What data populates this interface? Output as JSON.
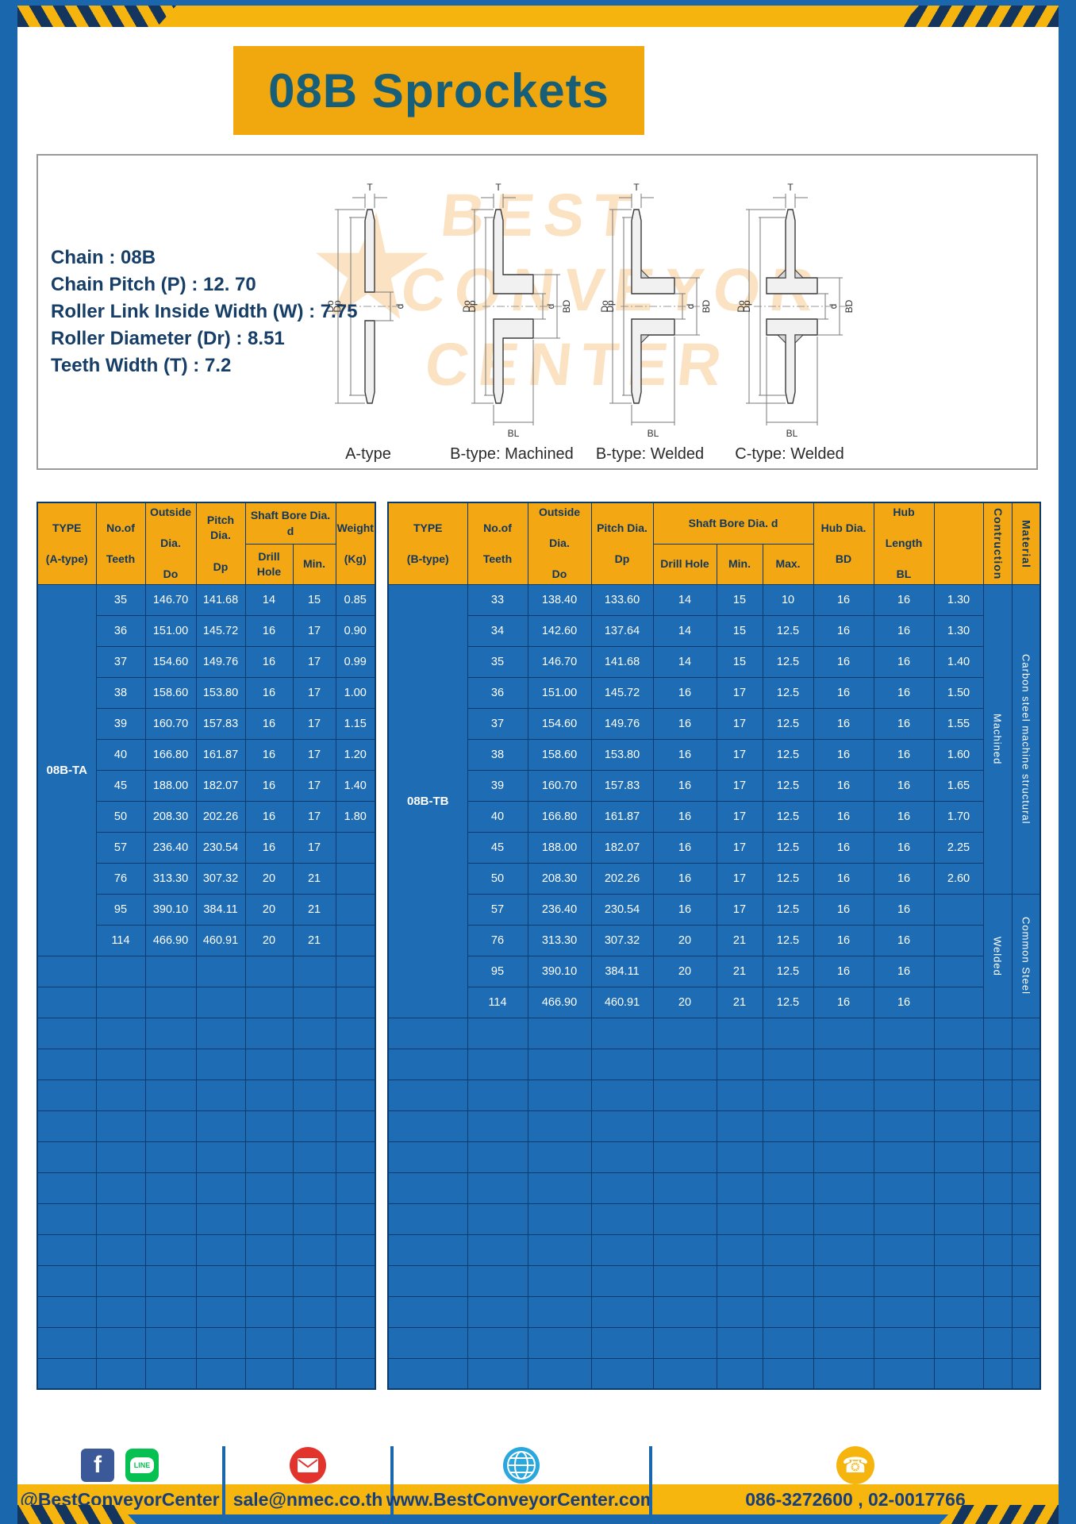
{
  "colors": {
    "frame_blue": "#1a67ae",
    "accent_yellow": "#f6b40e",
    "hazard_navy": "#14355e",
    "header_amber": "#f3a712",
    "table_blue": "#1d6cb4",
    "grid_navy": "#0a3a6e",
    "title_teal": "#175e78",
    "text_navy": "#173e66"
  },
  "title": {
    "text": "08B Sprockets"
  },
  "specs": {
    "lines": [
      "Chain : 08B",
      "Chain Pitch (P) : 12. 70",
      "Roller Link Inside Width (W) : 7.75",
      "Roller Diameter (Dr) : 8.51",
      "Teeth Width (T) : 7.2"
    ],
    "watermark": {
      "star": "★",
      "line1": "BEST",
      "line2": "CONVEYOR",
      "line3": "CENTER"
    },
    "drawings": [
      {
        "label": "A-type",
        "dims": {
          "t": "T",
          "outer": "Do",
          "pitch": "Dp",
          "bore": "d"
        }
      },
      {
        "label": "B-type: Machined",
        "dims": {
          "t": "T",
          "outer": "Do",
          "pitch": "Dp",
          "bore": "d",
          "hub_dia": "BD",
          "hub_len": "BL"
        }
      },
      {
        "label": "B-type: Welded",
        "dims": {
          "t": "T",
          "outer": "Do",
          "pitch": "Dp",
          "bore": "d",
          "hub_dia": "BD",
          "hub_len": "BL"
        }
      },
      {
        "label": "C-type: Welded",
        "dims": {
          "t": "T",
          "outer": "Do",
          "pitch": "Dp",
          "bore": "d",
          "hub_dia": "BD",
          "hub_len": "BL"
        }
      }
    ]
  },
  "table_a": {
    "type_value": "08B-TA",
    "col_count": 7,
    "empty_rows": 14,
    "header": {
      "type": "TYPE\n\n(A-type)",
      "teeth": "No.of\n\nTeeth",
      "outside": "Outside\n\nDia.\n\nDo",
      "pitch": "Pitch Dia.\n\nDp",
      "bore_group": "Shaft Bore Dia. d",
      "drill": "Drill Hole",
      "min": "Min.",
      "weight": "Weight\n\n(Kg)"
    },
    "rows": [
      [
        "35",
        "146.70",
        "141.68",
        "14",
        "15",
        "0.85"
      ],
      [
        "36",
        "151.00",
        "145.72",
        "16",
        "17",
        "0.90"
      ],
      [
        "37",
        "154.60",
        "149.76",
        "16",
        "17",
        "0.99"
      ],
      [
        "38",
        "158.60",
        "153.80",
        "16",
        "17",
        "1.00"
      ],
      [
        "39",
        "160.70",
        "157.83",
        "16",
        "17",
        "1.15"
      ],
      [
        "40",
        "166.80",
        "161.87",
        "16",
        "17",
        "1.20"
      ],
      [
        "45",
        "188.00",
        "182.07",
        "16",
        "17",
        "1.40"
      ],
      [
        "50",
        "208.30",
        "202.26",
        "16",
        "17",
        "1.80"
      ],
      [
        "57",
        "236.40",
        "230.54",
        "16",
        "17",
        ""
      ],
      [
        "76",
        "313.30",
        "307.32",
        "20",
        "21",
        ""
      ],
      [
        "95",
        "390.10",
        "384.11",
        "20",
        "21",
        ""
      ],
      [
        "114",
        "466.90",
        "460.91",
        "20",
        "21",
        ""
      ]
    ]
  },
  "table_b": {
    "type_value": "08B-TB",
    "col_count": 12,
    "empty_rows": 12,
    "header": {
      "type": "TYPE\n\n(B-type)",
      "teeth": "No.of\n\nTeeth",
      "outside": "Outside\n\nDia.\n\nDo",
      "pitch": "Pitch Dia.\n\nDp",
      "bore_group": "Shaft Bore Dia. d",
      "drill": "Drill Hole",
      "min": "Min.",
      "max": "Max.",
      "hub_dia": "Hub Dia.\n\nBD",
      "hub_len": "Hub\n\nLength\n\nBL",
      "contruction": "Contruction",
      "material": "Material"
    },
    "rows": [
      [
        "33",
        "138.40",
        "133.60",
        "14",
        "15",
        "10",
        "16",
        "16",
        "1.30"
      ],
      [
        "34",
        "142.60",
        "137.64",
        "14",
        "15",
        "12.5",
        "16",
        "16",
        "1.30"
      ],
      [
        "35",
        "146.70",
        "141.68",
        "14",
        "15",
        "12.5",
        "16",
        "16",
        "1.40"
      ],
      [
        "36",
        "151.00",
        "145.72",
        "16",
        "17",
        "12.5",
        "16",
        "16",
        "1.50"
      ],
      [
        "37",
        "154.60",
        "149.76",
        "16",
        "17",
        "12.5",
        "16",
        "16",
        "1.55"
      ],
      [
        "38",
        "158.60",
        "153.80",
        "16",
        "17",
        "12.5",
        "16",
        "16",
        "1.60"
      ],
      [
        "39",
        "160.70",
        "157.83",
        "16",
        "17",
        "12.5",
        "16",
        "16",
        "1.65"
      ],
      [
        "40",
        "166.80",
        "161.87",
        "16",
        "17",
        "12.5",
        "16",
        "16",
        "1.70"
      ],
      [
        "45",
        "188.00",
        "182.07",
        "16",
        "17",
        "12.5",
        "16",
        "16",
        "2.25"
      ],
      [
        "50",
        "208.30",
        "202.26",
        "16",
        "17",
        "12.5",
        "16",
        "16",
        "2.60"
      ],
      [
        "57",
        "236.40",
        "230.54",
        "16",
        "17",
        "12.5",
        "16",
        "16",
        ""
      ],
      [
        "76",
        "313.30",
        "307.32",
        "20",
        "21",
        "12.5",
        "16",
        "16",
        ""
      ],
      [
        "95",
        "390.10",
        "384.11",
        "20",
        "21",
        "12.5",
        "16",
        "16",
        ""
      ],
      [
        "114",
        "466.90",
        "460.91",
        "20",
        "21",
        "12.5",
        "16",
        "16",
        ""
      ]
    ],
    "vertical_groups": [
      {
        "segments": [
          {
            "label": "Machined",
            "rows": 10
          },
          {
            "label": "Welded",
            "rows": 4
          }
        ]
      },
      {
        "segments": [
          {
            "label": "Carbon steel  machine  structural",
            "rows": 10
          },
          {
            "label": "Common  Steel",
            "rows": 4
          }
        ]
      }
    ]
  },
  "footer": {
    "facebook_letter": "f",
    "line_label": "LINE",
    "social_handle": "@BestConveyorCenter",
    "email": "sale@nmec.co.th",
    "website": "www.BestConveyorCenter.com",
    "phone": "086-3272600 , 02-0017766"
  }
}
